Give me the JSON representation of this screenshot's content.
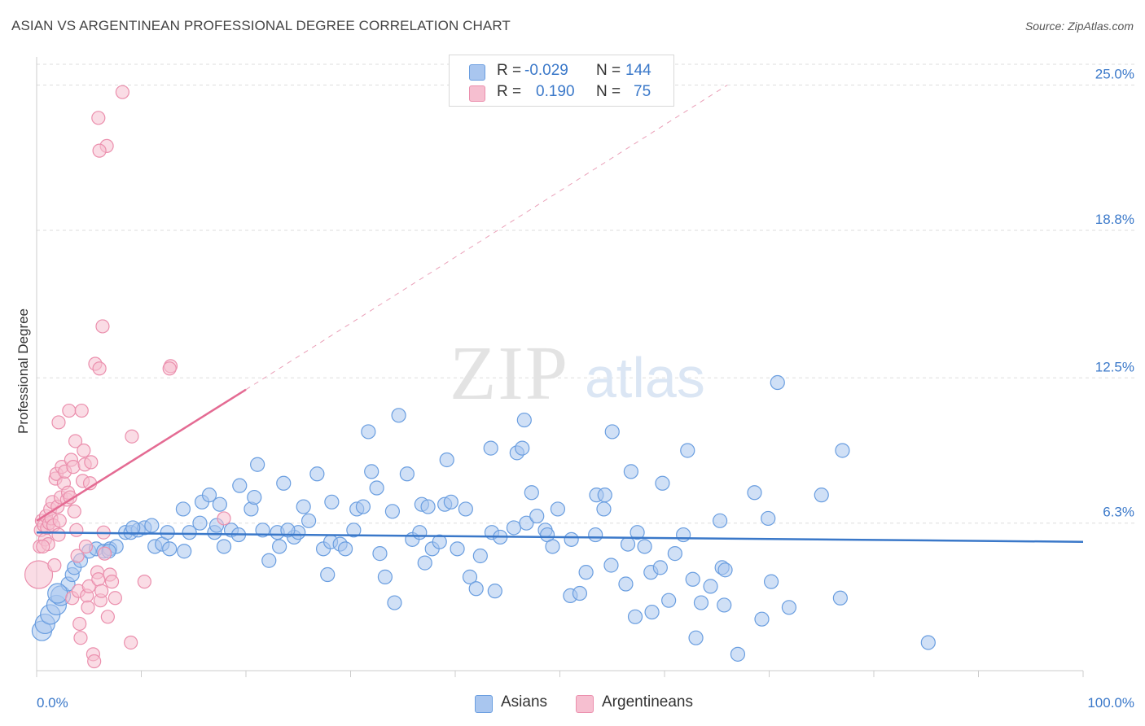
{
  "title": "ASIAN VS ARGENTINEAN PROFESSIONAL DEGREE CORRELATION CHART",
  "source": "Source: ZipAtlas.com",
  "watermark": {
    "zip": "ZIP",
    "atlas": "atlas"
  },
  "legend_top": {
    "rows": [
      {
        "r_label": "R =",
        "r_value": "-0.029",
        "n_label": "N =",
        "n_value": "144",
        "color": "#a9c6ef",
        "border": "#6a9ee0"
      },
      {
        "r_label": "R =",
        "r_value": "0.190",
        "n_label": "N =",
        "n_value": "75",
        "color": "#f6bfd0",
        "border": "#eb8fad"
      }
    ]
  },
  "legend_bottom": [
    {
      "label": "Asians",
      "color": "#a9c6ef",
      "border": "#6a9ee0"
    },
    {
      "label": "Argentineans",
      "color": "#f6bfd0",
      "border": "#eb8fad"
    }
  ],
  "chart_data": {
    "type": "scatter",
    "title": "ASIAN VS ARGENTINEAN PROFESSIONAL DEGREE CORRELATION CHART",
    "xlabel": "",
    "ylabel": "Professional Degree",
    "xlim": [
      0,
      100
    ],
    "ylim": [
      0,
      26.2
    ],
    "x_tick_labels": [
      "0.0%",
      "100.0%"
    ],
    "y_ticks": [
      6.3,
      12.5,
      18.8,
      25.0
    ],
    "y_tick_labels": [
      "6.3%",
      "12.5%",
      "18.8%",
      "25.0%"
    ],
    "grid": true,
    "legend_position": "top-center",
    "series": [
      {
        "name": "Asians",
        "color": "#6a9ee0",
        "fill": "#a9c6ef",
        "trend": {
          "x": [
            0,
            100
          ],
          "y": [
            5.9,
            5.5
          ],
          "style": "solid",
          "color": "#3a78c9"
        },
        "points": [
          [
            0.5,
            1.7
          ],
          [
            0.8,
            2.0
          ],
          [
            1.3,
            2.4
          ],
          [
            1.9,
            2.8
          ],
          [
            2.3,
            3.2
          ],
          [
            3.0,
            3.7
          ],
          [
            3.4,
            4.1
          ],
          [
            3.6,
            4.4
          ],
          [
            4.2,
            4.7
          ],
          [
            5.0,
            5.1
          ],
          [
            5.7,
            5.2
          ],
          [
            6.4,
            5.1
          ],
          [
            7.0,
            5.2
          ],
          [
            7.6,
            5.3
          ],
          [
            8.5,
            5.9
          ],
          [
            9.0,
            5.9
          ],
          [
            9.7,
            6.0
          ],
          [
            10.3,
            6.1
          ],
          [
            11.0,
            6.2
          ],
          [
            11.3,
            5.3
          ],
          [
            12.0,
            5.4
          ],
          [
            12.7,
            5.2
          ],
          [
            12.5,
            5.9
          ],
          [
            14.1,
            5.1
          ],
          [
            14.0,
            6.9
          ],
          [
            14.6,
            5.9
          ],
          [
            15.8,
            7.2
          ],
          [
            16.5,
            7.5
          ],
          [
            17.0,
            5.9
          ],
          [
            17.2,
            6.2
          ],
          [
            17.5,
            7.1
          ],
          [
            17.9,
            5.3
          ],
          [
            18.6,
            6.0
          ],
          [
            19.3,
            5.8
          ],
          [
            19.4,
            7.9
          ],
          [
            20.5,
            6.9
          ],
          [
            20.8,
            7.4
          ],
          [
            21.1,
            8.8
          ],
          [
            21.6,
            6.0
          ],
          [
            22.2,
            4.7
          ],
          [
            23.0,
            5.9
          ],
          [
            23.2,
            5.3
          ],
          [
            23.6,
            8.0
          ],
          [
            24.6,
            5.7
          ],
          [
            25.0,
            5.9
          ],
          [
            25.5,
            7.0
          ],
          [
            26.0,
            6.4
          ],
          [
            26.8,
            8.4
          ],
          [
            27.4,
            5.2
          ],
          [
            27.8,
            4.1
          ],
          [
            28.1,
            5.5
          ],
          [
            29.0,
            5.4
          ],
          [
            29.5,
            5.2
          ],
          [
            28.2,
            7.2
          ],
          [
            30.3,
            6.0
          ],
          [
            30.6,
            6.9
          ],
          [
            31.2,
            7.0
          ],
          [
            31.7,
            10.2
          ],
          [
            32.0,
            8.5
          ],
          [
            32.5,
            7.8
          ],
          [
            32.8,
            5.0
          ],
          [
            33.3,
            4.0
          ],
          [
            34.2,
            2.9
          ],
          [
            34.6,
            10.9
          ],
          [
            34.0,
            6.8
          ],
          [
            35.4,
            8.4
          ],
          [
            35.9,
            5.6
          ],
          [
            36.6,
            5.9
          ],
          [
            36.8,
            7.1
          ],
          [
            37.4,
            7.0
          ],
          [
            37.8,
            5.2
          ],
          [
            38.5,
            5.5
          ],
          [
            39.0,
            7.1
          ],
          [
            39.2,
            9.0
          ],
          [
            39.6,
            7.2
          ],
          [
            40.2,
            5.2
          ],
          [
            41.0,
            6.9
          ],
          [
            41.4,
            4.0
          ],
          [
            42.0,
            3.5
          ],
          [
            42.4,
            4.9
          ],
          [
            43.8,
            3.4
          ],
          [
            43.5,
            5.9
          ],
          [
            43.4,
            9.5
          ],
          [
            44.3,
            5.7
          ],
          [
            45.6,
            6.1
          ],
          [
            45.9,
            9.3
          ],
          [
            46.6,
            10.7
          ],
          [
            46.8,
            6.3
          ],
          [
            46.4,
            9.5
          ],
          [
            47.3,
            7.6
          ],
          [
            47.8,
            6.6
          ],
          [
            48.6,
            6.0
          ],
          [
            48.8,
            5.8
          ],
          [
            49.3,
            5.3
          ],
          [
            49.8,
            6.9
          ],
          [
            51.0,
            3.2
          ],
          [
            51.1,
            5.6
          ],
          [
            51.9,
            3.3
          ],
          [
            52.5,
            4.2
          ],
          [
            53.5,
            7.5
          ],
          [
            53.4,
            5.8
          ],
          [
            54.2,
            6.9
          ],
          [
            54.3,
            7.5
          ],
          [
            54.9,
            4.5
          ],
          [
            55.0,
            10.2
          ],
          [
            56.3,
            3.7
          ],
          [
            56.5,
            5.4
          ],
          [
            56.8,
            8.5
          ],
          [
            57.4,
            5.9
          ],
          [
            57.2,
            2.3
          ],
          [
            58.1,
            5.3
          ],
          [
            58.8,
            2.5
          ],
          [
            58.7,
            4.2
          ],
          [
            59.6,
            4.4
          ],
          [
            59.8,
            8.0
          ],
          [
            60.4,
            3.0
          ],
          [
            61.0,
            5.0
          ],
          [
            61.8,
            5.8
          ],
          [
            62.2,
            9.4
          ],
          [
            62.7,
            3.9
          ],
          [
            63.0,
            1.4
          ],
          [
            63.5,
            2.9
          ],
          [
            64.4,
            3.6
          ],
          [
            65.5,
            4.4
          ],
          [
            65.3,
            6.4
          ],
          [
            65.8,
            4.3
          ],
          [
            65.7,
            2.8
          ],
          [
            67.0,
            0.7
          ],
          [
            68.6,
            7.6
          ],
          [
            69.3,
            2.2
          ],
          [
            69.9,
            6.5
          ],
          [
            70.2,
            3.8
          ],
          [
            70.8,
            12.3
          ],
          [
            71.9,
            2.7
          ],
          [
            75.0,
            7.5
          ],
          [
            76.8,
            3.1
          ],
          [
            77.0,
            9.4
          ],
          [
            85.2,
            1.2
          ],
          [
            2.0,
            3.3
          ],
          [
            6.9,
            5.1
          ],
          [
            9.2,
            6.1
          ],
          [
            15.6,
            6.3
          ],
          [
            24.0,
            6.0
          ],
          [
            37.1,
            4.6
          ]
        ]
      },
      {
        "name": "Argentineans",
        "color": "#eb8fad",
        "fill": "#f6bfd0",
        "trend": {
          "x": [
            0,
            20
          ],
          "y": [
            6.4,
            12.0
          ],
          "style": "solid",
          "color": "#e46b93",
          "extension": {
            "x": [
              20,
              66
            ],
            "y": [
              12.0,
              25.0
            ],
            "style": "dashed"
          }
        },
        "points": [
          [
            0.2,
            4.1
          ],
          [
            0.3,
            5.3
          ],
          [
            0.4,
            6.0
          ],
          [
            0.5,
            6.4
          ],
          [
            0.7,
            6.2
          ],
          [
            0.8,
            5.6
          ],
          [
            0.9,
            6.6
          ],
          [
            1.0,
            6.1
          ],
          [
            1.1,
            5.4
          ],
          [
            1.2,
            6.3
          ],
          [
            1.3,
            6.9
          ],
          [
            1.4,
            6.5
          ],
          [
            1.5,
            7.2
          ],
          [
            1.6,
            6.2
          ],
          [
            1.8,
            8.2
          ],
          [
            1.9,
            8.4
          ],
          [
            2.0,
            7.0
          ],
          [
            2.1,
            5.8
          ],
          [
            2.2,
            6.4
          ],
          [
            2.3,
            7.4
          ],
          [
            2.4,
            8.7
          ],
          [
            2.1,
            10.6
          ],
          [
            2.6,
            8.0
          ],
          [
            2.7,
            8.5
          ],
          [
            2.9,
            7.3
          ],
          [
            3.0,
            7.6
          ],
          [
            3.1,
            11.1
          ],
          [
            3.2,
            7.4
          ],
          [
            3.3,
            9.0
          ],
          [
            3.4,
            3.1
          ],
          [
            3.5,
            8.7
          ],
          [
            3.6,
            6.8
          ],
          [
            3.7,
            9.8
          ],
          [
            3.8,
            6.0
          ],
          [
            3.9,
            4.9
          ],
          [
            4.0,
            3.4
          ],
          [
            4.1,
            2.0
          ],
          [
            4.2,
            1.4
          ],
          [
            4.3,
            11.1
          ],
          [
            4.4,
            8.1
          ],
          [
            4.5,
            9.4
          ],
          [
            4.6,
            8.8
          ],
          [
            4.7,
            5.3
          ],
          [
            4.8,
            3.2
          ],
          [
            4.9,
            2.7
          ],
          [
            5.0,
            3.6
          ],
          [
            5.1,
            8.0
          ],
          [
            5.2,
            8.9
          ],
          [
            5.4,
            0.7
          ],
          [
            5.5,
            0.4
          ],
          [
            5.6,
            13.1
          ],
          [
            5.8,
            4.2
          ],
          [
            5.9,
            3.9
          ],
          [
            6.0,
            12.9
          ],
          [
            6.1,
            3.0
          ],
          [
            6.2,
            3.4
          ],
          [
            6.3,
            14.7
          ],
          [
            6.4,
            5.9
          ],
          [
            6.5,
            5.0
          ],
          [
            6.7,
            22.4
          ],
          [
            6.8,
            2.3
          ],
          [
            7.0,
            4.1
          ],
          [
            7.2,
            3.8
          ],
          [
            7.5,
            3.1
          ],
          [
            5.9,
            23.6
          ],
          [
            6.0,
            22.2
          ],
          [
            8.2,
            24.7
          ],
          [
            9.1,
            10.0
          ],
          [
            9.0,
            1.2
          ],
          [
            10.3,
            3.8
          ],
          [
            12.8,
            13.0
          ],
          [
            12.7,
            12.9
          ],
          [
            17.9,
            6.5
          ],
          [
            0.6,
            5.3
          ],
          [
            1.7,
            4.5
          ]
        ]
      }
    ]
  }
}
